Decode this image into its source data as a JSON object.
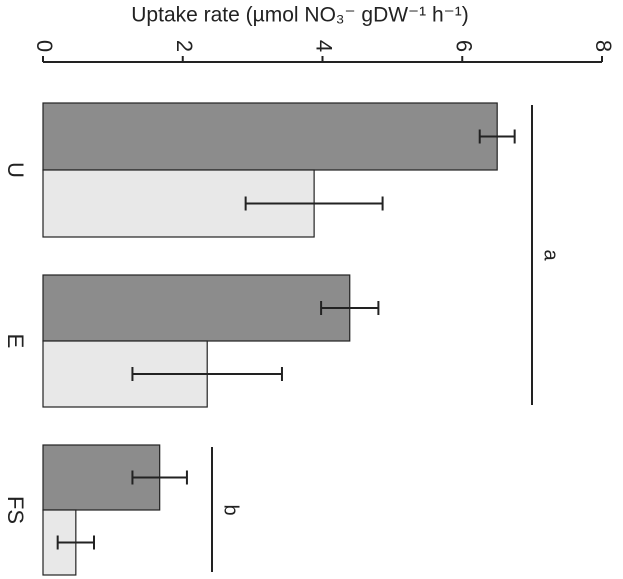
{
  "chart_data": {
    "type": "bar",
    "orientation": "horizontal",
    "title": "Uptake rate (µmol NO₃⁻ gDW⁻¹ h⁻¹)",
    "categories": [
      "U",
      "E",
      "FS"
    ],
    "series": [
      {
        "color": "#8c8c8c",
        "values": [
          6.5,
          4.39,
          1.67
        ],
        "errors": [
          0.25,
          0.41,
          0.39
        ]
      },
      {
        "color": "#e8e8e8",
        "values": [
          3.88,
          2.35,
          0.47
        ],
        "errors": [
          0.98,
          1.07,
          0.26
        ]
      }
    ],
    "xlim": [
      0,
      8
    ],
    "xticks": [
      0,
      2,
      4,
      6,
      8
    ],
    "annotations": [
      {
        "text": "a"
      },
      {
        "text": "b"
      }
    ]
  }
}
